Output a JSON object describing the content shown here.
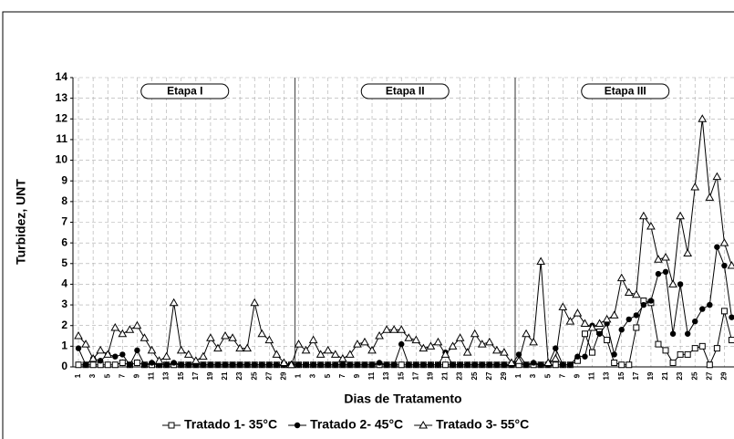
{
  "chart_data": {
    "type": "line",
    "y_label": "Turbidez, UNT",
    "x_label": "Dias de Tratamento",
    "annotations": [
      "Etapa I",
      "Etapa II",
      "Etapa III"
    ],
    "categories": [
      "1",
      null,
      "3",
      null,
      "5",
      null,
      "7",
      null,
      "9",
      null,
      "11",
      null,
      "13",
      null,
      "15",
      null,
      "17",
      null,
      "19",
      null,
      "21",
      null,
      "23",
      null,
      "25",
      null,
      "27",
      null,
      "29",
      null,
      "1",
      null,
      "3",
      null,
      "5",
      null,
      "7",
      null,
      "9",
      null,
      "11",
      null,
      "13",
      null,
      "15",
      null,
      "17",
      null,
      "19",
      null,
      "21",
      null,
      "23",
      null,
      "25",
      null,
      "27",
      null,
      "29",
      null,
      "1",
      null,
      "3",
      null,
      "5",
      null,
      "7",
      null,
      "9",
      null,
      "11",
      null,
      "13",
      null,
      "15",
      null,
      "17",
      null,
      "19",
      null,
      "21",
      null,
      "23",
      null,
      "25",
      null,
      "27",
      null,
      "29",
      null
    ],
    "series": [
      {
        "name": "Tratado 1- 35°C",
        "color": "#000000",
        "marker": "square",
        "values": [
          0.1,
          0.1,
          0.1,
          0.1,
          0.1,
          0.1,
          0.2,
          0.1,
          0.2,
          0.1,
          0.1,
          0.1,
          0.1,
          0.1,
          0.1,
          0.1,
          0.1,
          0.1,
          0.1,
          0.1,
          0.1,
          0.1,
          0.1,
          0.1,
          0.1,
          0.1,
          0.1,
          0.1,
          0.1,
          0.1,
          0.1,
          0.1,
          0.1,
          0.1,
          0.1,
          0.1,
          0.1,
          0.1,
          0.1,
          0.1,
          0.1,
          0.1,
          0.1,
          0.1,
          0.1,
          0.1,
          0.1,
          0.1,
          0.1,
          0.1,
          0.1,
          0.1,
          0.1,
          0.1,
          0.1,
          0.1,
          0.1,
          0.1,
          0.1,
          0.1,
          0.1,
          0.1,
          0.1,
          0.1,
          0.1,
          0.1,
          0.1,
          0.1,
          0.3,
          1.6,
          0.7,
          1.7,
          1.3,
          0.2,
          0.1,
          0.1,
          1.9,
          3.2,
          3.1,
          1.1,
          0.8,
          0.2,
          0.6,
          0.6,
          0.9,
          1.0,
          0.1,
          0.9,
          2.7,
          1.3
        ]
      },
      {
        "name": "Tratado 2- 45°C",
        "color": "#000000",
        "marker": "circle",
        "values": [
          0.9,
          0.1,
          0.4,
          0.3,
          0.6,
          0.5,
          0.6,
          0.1,
          0.8,
          0.1,
          0.2,
          0.1,
          0.1,
          0.2,
          0.1,
          0.1,
          0.1,
          0.1,
          0.1,
          0.1,
          0.1,
          0.1,
          0.1,
          0.1,
          0.1,
          0.1,
          0.1,
          0.1,
          0.1,
          0.1,
          0.1,
          0.1,
          0.1,
          0.1,
          0.1,
          0.1,
          0.1,
          0.1,
          0.1,
          0.1,
          0.1,
          0.2,
          0.1,
          0.1,
          1.1,
          0.1,
          0.1,
          0.1,
          0.1,
          0.1,
          0.7,
          0.1,
          0.1,
          0.1,
          0.1,
          0.1,
          0.1,
          0.1,
          0.1,
          0.1,
          0.6,
          0.1,
          0.2,
          0.1,
          0.1,
          0.9,
          0.1,
          0.1,
          0.5,
          0.5,
          2.0,
          1.6,
          2.1,
          0.6,
          1.8,
          2.3,
          2.5,
          3.0,
          3.2,
          4.5,
          4.6,
          1.6,
          4.0,
          1.6,
          2.2,
          2.8,
          3.0,
          5.8,
          4.9,
          2.4
        ]
      },
      {
        "name": "Tratado 3- 55°C",
        "color": "#000000",
        "marker": "triangle",
        "values": [
          1.5,
          1.1,
          0.4,
          0.8,
          0.6,
          1.9,
          1.6,
          1.8,
          2.0,
          1.4,
          0.8,
          0.3,
          0.5,
          3.1,
          0.8,
          0.6,
          0.3,
          0.5,
          1.4,
          0.9,
          1.5,
          1.4,
          0.9,
          0.9,
          3.1,
          1.6,
          1.3,
          0.6,
          0.2,
          0.1,
          1.1,
          0.8,
          1.3,
          0.6,
          0.8,
          0.6,
          0.4,
          0.6,
          1.1,
          1.2,
          0.8,
          1.5,
          1.8,
          1.8,
          1.8,
          1.4,
          1.3,
          0.9,
          1.0,
          1.2,
          0.6,
          1.0,
          1.4,
          0.7,
          1.6,
          1.1,
          1.2,
          0.8,
          0.7,
          0.2,
          0.3,
          1.6,
          1.2,
          5.1,
          0.2,
          0.4,
          2.9,
          2.2,
          2.6,
          2.1,
          1.9,
          2.1,
          2.3,
          2.5,
          4.3,
          3.6,
          3.5,
          7.3,
          6.8,
          5.2,
          5.3,
          4.0,
          7.3,
          5.5,
          8.7,
          12.0,
          8.2,
          9.2,
          6.0,
          4.9
        ]
      }
    ],
    "ylim": [
      0,
      14
    ],
    "yticks": [
      0,
      1,
      2,
      3,
      4,
      5,
      6,
      7,
      8,
      9,
      10,
      11,
      12,
      13,
      14
    ],
    "grid": true,
    "legend": "bottom"
  }
}
